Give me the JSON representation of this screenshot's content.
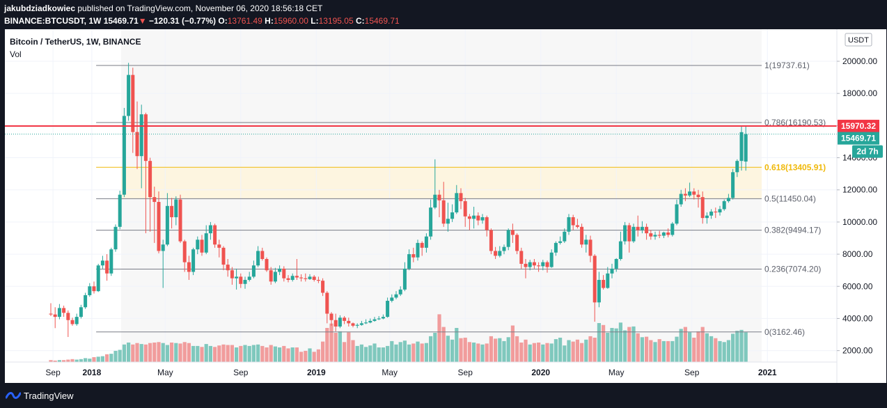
{
  "header": {
    "author": "jakubdziadkowiec",
    "published": "published on TradingView.com, November 06, 2020 18:56:18 CET",
    "symbol": "BINANCE:BTCUSDT, 1W",
    "last": "15469.71",
    "change_arrow": "▼",
    "change": "−120.31 (−0.77%)",
    "o_label": "O:",
    "o_value": "13761.49",
    "h_label": "H:",
    "h_value": "15960.00",
    "l_label": "L:",
    "l_value": "13195.05",
    "c_label": "C:",
    "c_value": "15469.71"
  },
  "footer": {
    "brand": "TradingView"
  },
  "colors": {
    "background": "#131722",
    "up": "#26a69a",
    "down": "#ef5350",
    "vol_up": "#7fc8bd",
    "vol_down": "#f19c9c",
    "fib_line": "#787b86",
    "fib_618": "#f0b90b",
    "level": "#f23645",
    "pane_bg": "#f7f7f7",
    "fib_band": "#fdf5e0"
  },
  "chart_data": {
    "type": "candlestick",
    "title": "Bitcoin / TetherUS, 1W, BINANCE",
    "subtitle": "Vol",
    "currency_badge": "USDT",
    "ylim": [
      1100,
      21000
    ],
    "y_ticks": [
      "20000.00",
      "18000.00",
      "16000.00",
      "14000.00",
      "12000.00",
      "10000.00",
      "8000.00",
      "6000.00",
      "4000.00",
      "2000.00"
    ],
    "y_tick_values": [
      20000,
      18000,
      16000,
      14000,
      12000,
      10000,
      8000,
      6000,
      4000,
      2000
    ],
    "x_ticks": [
      "Sep",
      "2018",
      "May",
      "Sep",
      "2019",
      "May",
      "Sep",
      "2020",
      "May",
      "Sep",
      "2021"
    ],
    "x_tick_weeks": [
      0.5,
      9.5,
      26.5,
      44,
      61.5,
      78.5,
      96,
      113.5,
      131,
      148.5,
      166
    ],
    "x_tick_bold": [
      false,
      true,
      false,
      false,
      true,
      false,
      false,
      true,
      false,
      false,
      true
    ],
    "fib_levels": [
      {
        "label": "1(19737.61)",
        "value": 19737.61
      },
      {
        "label": "0.786(16190.53)",
        "value": 16190.53
      },
      {
        "label": "0.618(13405.91)",
        "value": 13405.91
      },
      {
        "label": "0.5(11450.04)",
        "value": 11450.04
      },
      {
        "label": "0.382(9494.17)",
        "value": 9494.17
      },
      {
        "label": "0.236(7074.20)",
        "value": 7074.2
      },
      {
        "label": "0(3162.46)",
        "value": 3162.46
      }
    ],
    "fib_start_week": 10.5,
    "horizontal_level": {
      "label": "15970.32",
      "value": 15970.32
    },
    "last_price": {
      "label": "15469.71",
      "value": 15469.71
    },
    "countdown": "2d 7h",
    "candles": [
      [
        4300,
        4250,
        4950,
        4150
      ],
      [
        4250,
        4100,
        4700,
        3400
      ],
      [
        4100,
        4650,
        4900,
        3950
      ],
      [
        4650,
        4350,
        4800,
        4100
      ],
      [
        4350,
        3900,
        4500,
        2850
      ],
      [
        3900,
        3650,
        4050,
        3550
      ],
      [
        3650,
        4100,
        4300,
        3550
      ],
      [
        4100,
        4700,
        4850,
        4000
      ],
      [
        4700,
        5450,
        5600,
        4600
      ],
      [
        5450,
        6000,
        6200,
        5350
      ],
      [
        6000,
        5700,
        6300,
        5550
      ],
      [
        5700,
        7300,
        7400,
        5650
      ],
      [
        7300,
        7600,
        7900,
        7100
      ],
      [
        7600,
        6800,
        8000,
        6350
      ],
      [
        6800,
        8300,
        8400,
        6650
      ],
      [
        8300,
        9700,
        9850,
        8150
      ],
      [
        9700,
        11700,
        11950,
        9550
      ],
      [
        11700,
        16600,
        17100,
        11550
      ],
      [
        16600,
        19150,
        19900,
        16300
      ],
      [
        19150,
        15600,
        19600,
        14300
      ],
      [
        15600,
        14100,
        17500,
        13300
      ],
      [
        14100,
        16700,
        17300,
        12100
      ],
      [
        16700,
        13800,
        16800,
        9300
      ],
      [
        13800,
        11550,
        14000,
        9400
      ],
      [
        11550,
        11250,
        12200,
        8700
      ],
      [
        11250,
        8200,
        11900,
        8050
      ],
      [
        8200,
        8600,
        8900,
        5900
      ],
      [
        8600,
        11000,
        11800,
        8500
      ],
      [
        11000,
        10300,
        11500,
        9600
      ],
      [
        10300,
        11400,
        11600,
        9800
      ],
      [
        11400,
        8800,
        11700,
        8700
      ],
      [
        8800,
        7500,
        8900,
        6900
      ],
      [
        7500,
        6900,
        7900,
        6400
      ],
      [
        6900,
        8300,
        8400,
        6700
      ],
      [
        8300,
        8900,
        9100,
        8000
      ],
      [
        8900,
        8100,
        9200,
        7900
      ],
      [
        8100,
        9300,
        9800,
        8000
      ],
      [
        9300,
        9800,
        10000,
        8900
      ],
      [
        9800,
        8600,
        9900,
        8400
      ],
      [
        8600,
        8400,
        8900,
        7800
      ],
      [
        8400,
        7350,
        8500,
        7000
      ],
      [
        7350,
        7000,
        7700,
        6600
      ],
      [
        7000,
        6500,
        7200,
        6100
      ],
      [
        6500,
        6600,
        7100,
        5800
      ],
      [
        6600,
        6150,
        6800,
        5900
      ],
      [
        6150,
        6400,
        6600,
        5850
      ],
      [
        6400,
        6600,
        6900,
        6300
      ],
      [
        6600,
        7300,
        7600,
        6500
      ],
      [
        7300,
        8200,
        8500,
        7200
      ],
      [
        8200,
        7700,
        8400,
        7600
      ],
      [
        7700,
        7000,
        7800,
        6900
      ],
      [
        7000,
        6300,
        7200,
        6100
      ],
      [
        6300,
        6900,
        7150,
        6200
      ],
      [
        6900,
        7100,
        7300,
        6700
      ],
      [
        7100,
        6500,
        7250,
        6300
      ],
      [
        6500,
        6400,
        6700,
        6250
      ],
      [
        6400,
        6650,
        6800,
        6300
      ],
      [
        6650,
        6550,
        7700,
        6400
      ],
      [
        6550,
        6500,
        6750,
        6300
      ],
      [
        6500,
        6450,
        6800,
        6300
      ],
      [
        6450,
        6600,
        6750,
        6400
      ],
      [
        6600,
        6400,
        6700,
        6300
      ],
      [
        6400,
        6350,
        6600,
        6200
      ],
      [
        6350,
        5600,
        6500,
        5400
      ],
      [
        5600,
        4300,
        5700,
        3700
      ],
      [
        4300,
        3900,
        4400,
        3550
      ],
      [
        3900,
        3500,
        4300,
        3200
      ],
      [
        3500,
        4050,
        4200,
        3400
      ],
      [
        4050,
        3850,
        4150,
        3650
      ],
      [
        3850,
        3700,
        4050,
        3500
      ],
      [
        3700,
        3550,
        3750,
        3450
      ],
      [
        3550,
        3600,
        3700,
        3400
      ],
      [
        3600,
        3700,
        3850,
        3550
      ],
      [
        3700,
        3750,
        3950,
        3650
      ],
      [
        3750,
        3850,
        4000,
        3700
      ],
      [
        3850,
        3950,
        4100,
        3800
      ],
      [
        3950,
        4000,
        4150,
        3900
      ],
      [
        4000,
        4100,
        4250,
        3950
      ],
      [
        4100,
        5100,
        5300,
        4050
      ],
      [
        5100,
        5300,
        5500,
        5000
      ],
      [
        5300,
        5500,
        5700,
        5200
      ],
      [
        5500,
        5800,
        6000,
        5400
      ],
      [
        5800,
        7100,
        7500,
        5700
      ],
      [
        7100,
        8000,
        8300,
        7000
      ],
      [
        8000,
        7800,
        8400,
        7500
      ],
      [
        7800,
        8700,
        8900,
        7600
      ],
      [
        8700,
        8400,
        8800,
        7900
      ],
      [
        8400,
        9100,
        9300,
        8100
      ],
      [
        9100,
        10900,
        11400,
        8900
      ],
      [
        10900,
        11700,
        13900,
        10800
      ],
      [
        11700,
        11350,
        12000,
        10300
      ],
      [
        11350,
        9900,
        12500,
        9700
      ],
      [
        9900,
        10200,
        11200,
        9400
      ],
      [
        10200,
        10600,
        11100,
        10000
      ],
      [
        10600,
        11800,
        12300,
        10500
      ],
      [
        11800,
        11300,
        12100,
        10800
      ],
      [
        11300,
        10350,
        11500,
        9700
      ],
      [
        10350,
        10200,
        10500,
        9500
      ],
      [
        10200,
        10400,
        10950,
        9600
      ],
      [
        10400,
        10100,
        10600,
        9800
      ],
      [
        10100,
        10300,
        10500,
        9900
      ],
      [
        10300,
        9500,
        10400,
        9100
      ],
      [
        9500,
        8200,
        9600,
        8000
      ],
      [
        8200,
        7900,
        8450,
        7700
      ],
      [
        7900,
        8200,
        8500,
        7800
      ],
      [
        8200,
        8450,
        8600,
        8000
      ],
      [
        8450,
        9500,
        9600,
        8250
      ],
      [
        9500,
        9200,
        9900,
        8700
      ],
      [
        9200,
        8200,
        9300,
        8000
      ],
      [
        8200,
        7400,
        8400,
        7100
      ],
      [
        7400,
        7200,
        7700,
        6500
      ],
      [
        7200,
        7500,
        7650,
        7000
      ],
      [
        7500,
        7300,
        7700,
        7100
      ],
      [
        7300,
        7250,
        7500,
        6900
      ],
      [
        7250,
        7500,
        7650,
        7000
      ],
      [
        7500,
        7200,
        7600,
        6850
      ],
      [
        7200,
        8100,
        8300,
        7150
      ],
      [
        8100,
        8700,
        8800,
        7900
      ],
      [
        8700,
        8800,
        9100,
        8600
      ],
      [
        8800,
        9400,
        9600,
        8700
      ],
      [
        9400,
        10300,
        10500,
        9200
      ],
      [
        10300,
        9800,
        10450,
        9500
      ],
      [
        9800,
        9700,
        10200,
        9600
      ],
      [
        9700,
        8600,
        9900,
        8400
      ],
      [
        8600,
        8900,
        9200,
        8100
      ],
      [
        8900,
        7900,
        9150,
        7500
      ],
      [
        7900,
        5000,
        8000,
        3800
      ],
      [
        5000,
        6400,
        6900,
        4700
      ],
      [
        6400,
        5900,
        6700,
        5800
      ],
      [
        5900,
        6800,
        7200,
        5850
      ],
      [
        6800,
        7100,
        7400,
        6500
      ],
      [
        7100,
        7700,
        7750,
        6900
      ],
      [
        7700,
        8800,
        9400,
        7600
      ],
      [
        8800,
        9800,
        10000,
        8600
      ],
      [
        9800,
        8800,
        9950,
        8100
      ],
      [
        8800,
        9700,
        9900,
        8700
      ],
      [
        9700,
        9500,
        10400,
        9100
      ],
      [
        9500,
        9700,
        10050,
        9300
      ],
      [
        9700,
        9300,
        9900,
        8900
      ],
      [
        9300,
        9100,
        9500,
        8900
      ],
      [
        9100,
        9200,
        9400,
        8900
      ],
      [
        9200,
        9150,
        9450,
        9000
      ],
      [
        9150,
        9350,
        9400,
        9000
      ],
      [
        9350,
        9200,
        9600,
        9050
      ],
      [
        9200,
        9900,
        10000,
        9100
      ],
      [
        9900,
        11100,
        11400,
        9800
      ],
      [
        11100,
        11750,
        12000,
        10950
      ],
      [
        11750,
        11650,
        12100,
        11300
      ],
      [
        11650,
        11900,
        12450,
        11550
      ],
      [
        11900,
        11700,
        12100,
        11400
      ],
      [
        11700,
        11550,
        12000,
        10900
      ],
      [
        11550,
        10250,
        11900,
        9900
      ],
      [
        10250,
        10400,
        10600,
        9900
      ],
      [
        10400,
        10650,
        10800,
        10200
      ],
      [
        10650,
        10600,
        10900,
        10250
      ],
      [
        10600,
        10800,
        11000,
        10400
      ],
      [
        10800,
        11300,
        11400,
        10700
      ],
      [
        11300,
        11500,
        11750,
        11200
      ],
      [
        11500,
        13100,
        13300,
        11400
      ],
      [
        13100,
        13800,
        13900,
        12800
      ],
      [
        13800,
        15590,
        15960,
        13200
      ],
      [
        13761.49,
        15469.71,
        15960,
        13195.05
      ]
    ],
    "volume_ratio": [
      0.04,
      0.03,
      0.04,
      0.04,
      0.05,
      0.06,
      0.05,
      0.06,
      0.08,
      0.07,
      0.1,
      0.11,
      0.12,
      0.16,
      0.17,
      0.23,
      0.25,
      0.36,
      0.4,
      0.36,
      0.39,
      0.37,
      0.36,
      0.39,
      0.4,
      0.41,
      0.39,
      0.35,
      0.4,
      0.39,
      0.38,
      0.41,
      0.39,
      0.33,
      0.33,
      0.31,
      0.37,
      0.33,
      0.31,
      0.34,
      0.36,
      0.35,
      0.35,
      0.3,
      0.33,
      0.35,
      0.33,
      0.35,
      0.36,
      0.33,
      0.3,
      0.35,
      0.32,
      0.3,
      0.33,
      0.28,
      0.3,
      0.3,
      0.21,
      0.23,
      0.28,
      0.21,
      0.26,
      0.42,
      0.7,
      0.79,
      0.6,
      0.63,
      0.41,
      0.61,
      0.45,
      0.33,
      0.36,
      0.31,
      0.34,
      0.38,
      0.3,
      0.3,
      0.33,
      0.43,
      0.36,
      0.41,
      0.44,
      0.36,
      0.38,
      0.42,
      0.38,
      0.39,
      0.53,
      0.6,
      0.98,
      0.72,
      0.54,
      0.46,
      0.7,
      0.49,
      0.5,
      0.41,
      0.4,
      0.38,
      0.36,
      0.38,
      0.53,
      0.48,
      0.49,
      0.43,
      0.51,
      0.75,
      0.53,
      0.4,
      0.46,
      0.36,
      0.39,
      0.4,
      0.36,
      0.39,
      0.38,
      0.47,
      0.5,
      0.34,
      0.45,
      0.42,
      0.46,
      0.39,
      0.46,
      0.53,
      0.5,
      0.8,
      0.76,
      0.6,
      0.7,
      0.69,
      0.81,
      0.65,
      0.72,
      0.73,
      0.59,
      0.51,
      0.52,
      0.45,
      0.41,
      0.47,
      0.43,
      0.43,
      0.43,
      0.52,
      0.68,
      0.72,
      0.61,
      0.5,
      0.63,
      0.72,
      0.59,
      0.53,
      0.49,
      0.43,
      0.41,
      0.45,
      0.58,
      0.64,
      0.66,
      0.61
    ]
  }
}
